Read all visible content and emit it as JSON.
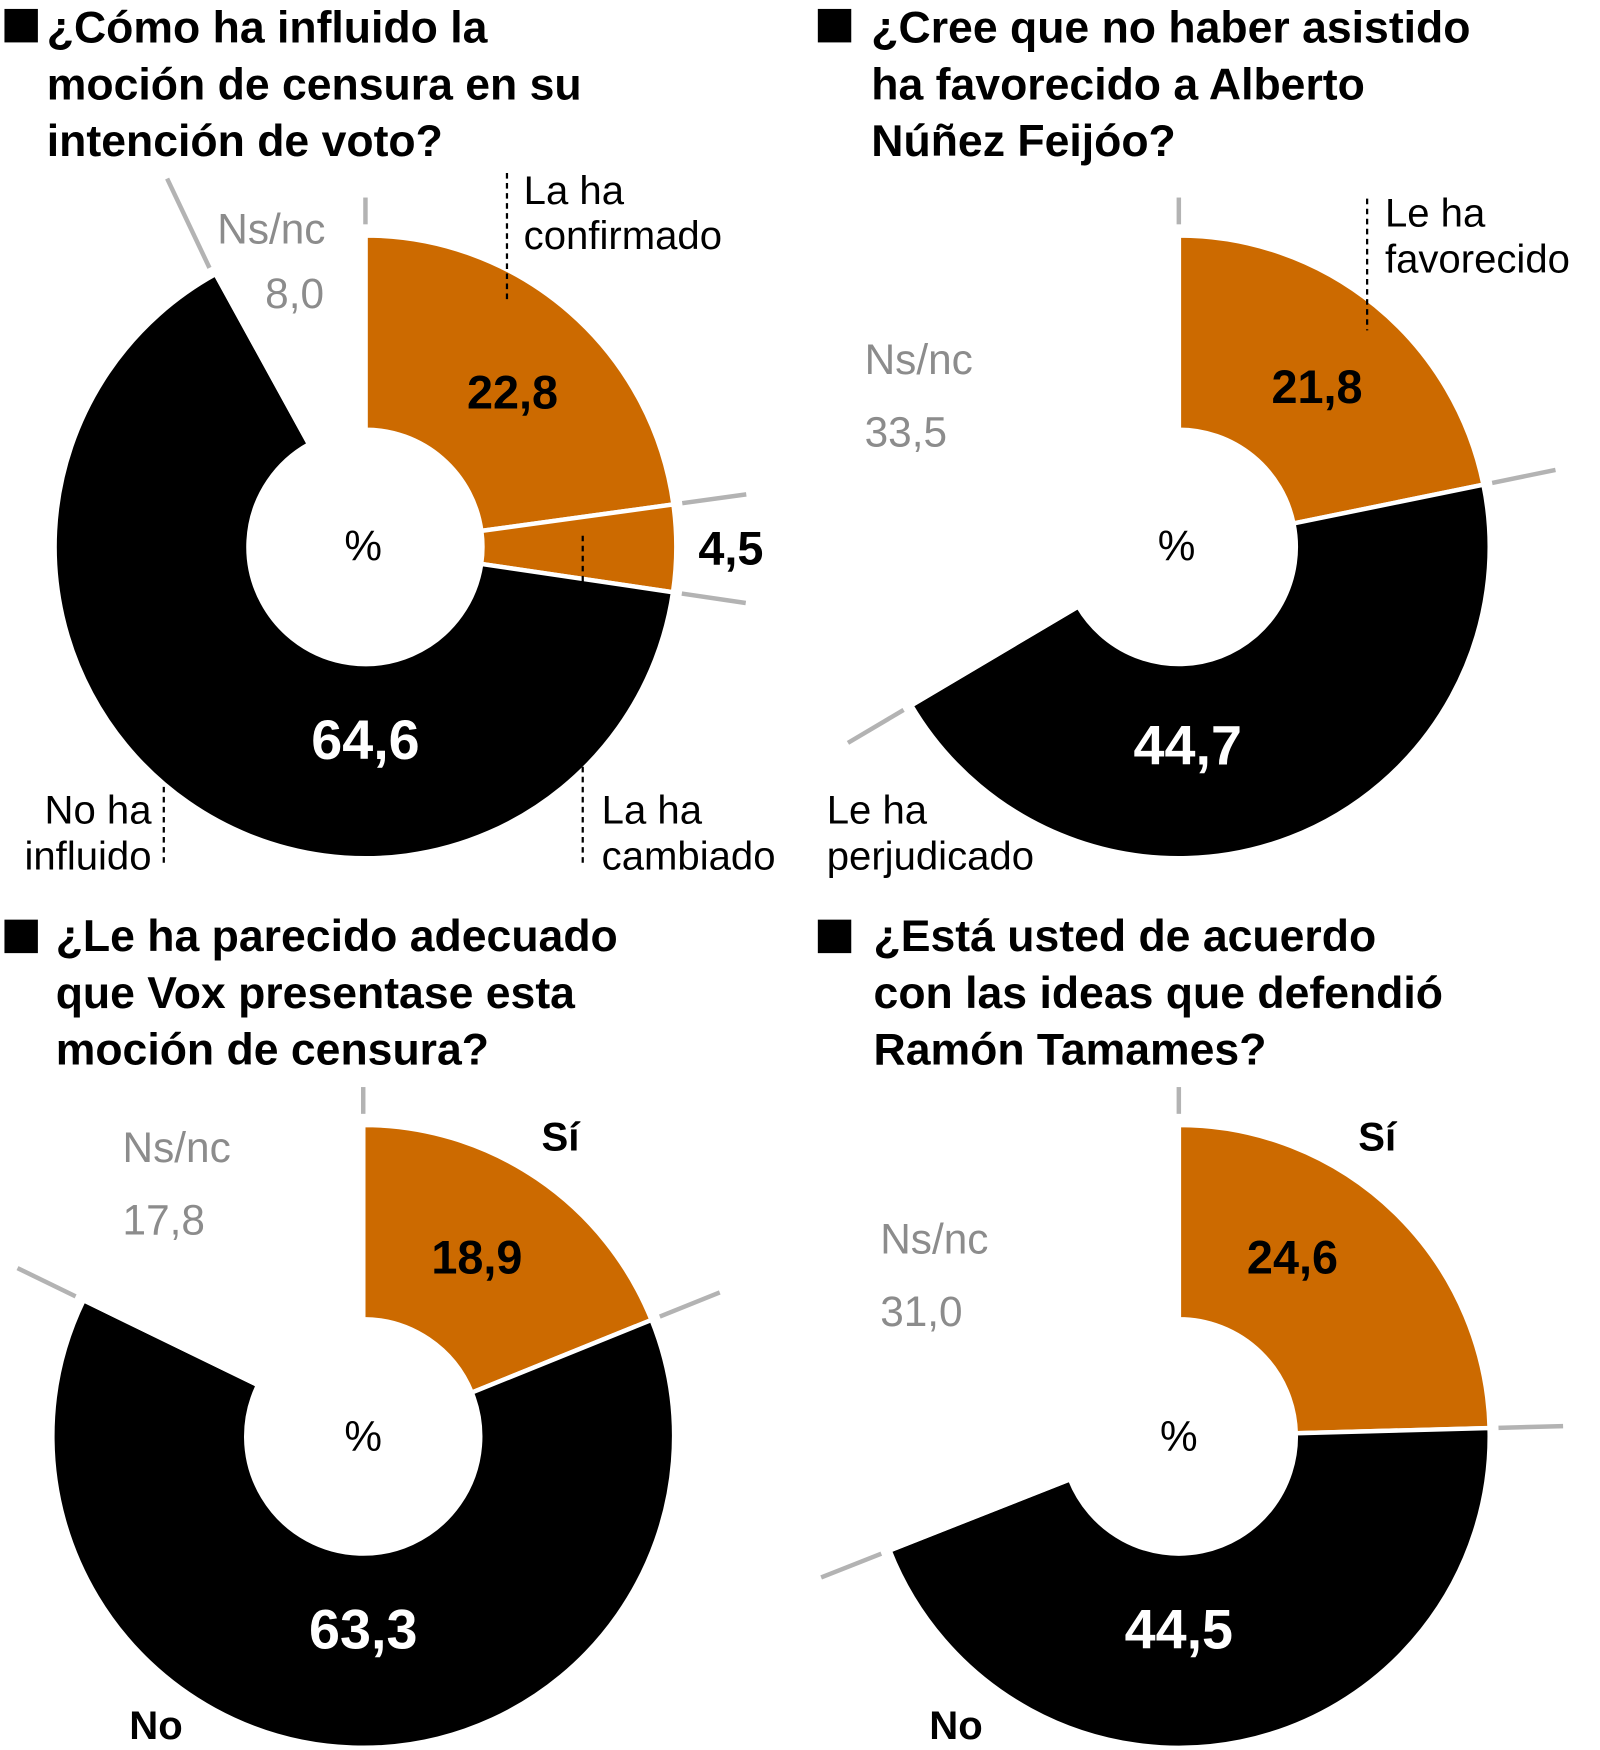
{
  "colors": {
    "orange": "#cc6a00",
    "black": "#000000",
    "nsnc": "#ffffff",
    "tick": "#b3b3b3"
  },
  "chart_data": [
    {
      "type": "pie",
      "title": [
        "¿Cómo ha influido la",
        "moción de censura en su",
        "intención de voto?"
      ],
      "unit": "%",
      "slices": [
        {
          "label": [
            "La ha",
            "confirmado"
          ],
          "value": 22.8,
          "display": "22,8",
          "color": "orange"
        },
        {
          "label": [
            "La ha",
            "cambiado"
          ],
          "value": 4.5,
          "display": "4,5",
          "color": "orange"
        },
        {
          "label": [
            "No ha",
            "influido"
          ],
          "value": 64.6,
          "display": "64,6",
          "color": "black"
        },
        {
          "label": [
            "Ns/nc"
          ],
          "value": 8.0,
          "display": "8,0",
          "color": "nsnc"
        }
      ]
    },
    {
      "type": "pie",
      "title": [
        "¿Cree que no haber asistido",
        "ha favorecido a Alberto",
        "Núñez Feijóo?"
      ],
      "unit": "%",
      "slices": [
        {
          "label": [
            "Le ha",
            "favorecido"
          ],
          "value": 21.8,
          "display": "21,8",
          "color": "orange"
        },
        {
          "label": [
            "Le ha",
            "perjudicado"
          ],
          "value": 44.7,
          "display": "44,7",
          "color": "black"
        },
        {
          "label": [
            "Ns/nc"
          ],
          "value": 33.5,
          "display": "33,5",
          "color": "nsnc"
        }
      ]
    },
    {
      "type": "pie",
      "title": [
        "¿Le ha parecido adecuado",
        "que Vox presentase esta",
        "moción de censura?"
      ],
      "unit": "%",
      "slices": [
        {
          "label": [
            "Sí"
          ],
          "value": 18.9,
          "display": "18,9",
          "color": "orange"
        },
        {
          "label": [
            "No"
          ],
          "value": 63.3,
          "display": "63,3",
          "color": "black"
        },
        {
          "label": [
            "Ns/nc"
          ],
          "value": 17.8,
          "display": "17,8",
          "color": "nsnc"
        }
      ]
    },
    {
      "type": "pie",
      "title": [
        "¿Está usted de acuerdo",
        "con las ideas que defendió",
        "Ramón Tamames?"
      ],
      "unit": "%",
      "slices": [
        {
          "label": [
            "Sí"
          ],
          "value": 24.6,
          "display": "24,6",
          "color": "orange"
        },
        {
          "label": [
            "No"
          ],
          "value": 44.5,
          "display": "44,5",
          "color": "black"
        },
        {
          "label": [
            "Ns/nc"
          ],
          "value": 31.0,
          "display": "31,0",
          "color": "nsnc"
        }
      ]
    }
  ]
}
